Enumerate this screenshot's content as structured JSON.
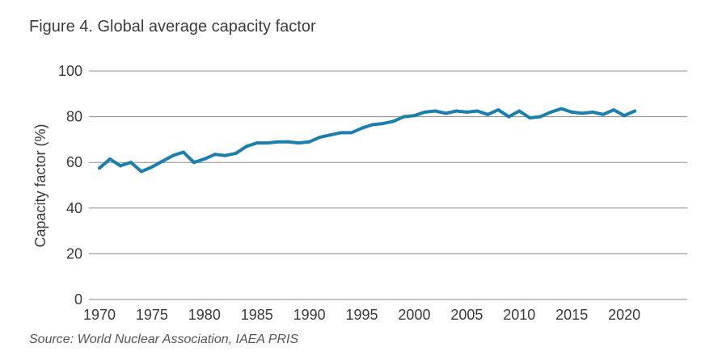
{
  "figure_title": "Figure 4. Global average capacity factor",
  "source": "Source: World Nuclear Association, IAEA PRIS",
  "colors": {
    "line": "#1a7fad",
    "grid": "#888888",
    "text": "#3a3a3a"
  },
  "chart_data": {
    "type": "line",
    "title": "Figure 4. Global average capacity factor",
    "xlabel": "",
    "ylabel": "Capacity factor (%)",
    "xlim": [
      1969,
      2026
    ],
    "ylim": [
      0,
      100
    ],
    "xticks": [
      1970,
      1975,
      1980,
      1985,
      1990,
      1995,
      2000,
      2005,
      2010,
      2015,
      2020
    ],
    "yticks": [
      0,
      20,
      40,
      60,
      80,
      100
    ],
    "grid": "horizontal",
    "legend": "none",
    "series": [
      {
        "x": [
          1970,
          1971,
          1972,
          1973,
          1974,
          1975,
          1976,
          1977,
          1978,
          1979,
          1980,
          1981,
          1982,
          1983,
          1984,
          1985,
          1986,
          1987,
          1988,
          1989,
          1990,
          1991,
          1992,
          1993,
          1994,
          1995,
          1996,
          1997,
          1998,
          1999,
          2000,
          2001,
          2002,
          2003,
          2004,
          2005,
          2006,
          2007,
          2008,
          2009,
          2010,
          2011,
          2012,
          2013,
          2014,
          2015,
          2016,
          2017,
          2018,
          2019,
          2020,
          2021
        ],
        "y": [
          57.5,
          61.5,
          58.5,
          60,
          56,
          58,
          60.5,
          63,
          64.5,
          60,
          61.5,
          63.5,
          63,
          64,
          67,
          68.5,
          68.5,
          69,
          69,
          68.5,
          69,
          71,
          72,
          73,
          73,
          75,
          76.5,
          77,
          78,
          80,
          80.5,
          82,
          82.5,
          81.5,
          82.5,
          82,
          82.5,
          81,
          83,
          80,
          82.5,
          79.5,
          80,
          82,
          83.5,
          82,
          81.5,
          82,
          81,
          83,
          80.5,
          82.5
        ]
      }
    ]
  }
}
